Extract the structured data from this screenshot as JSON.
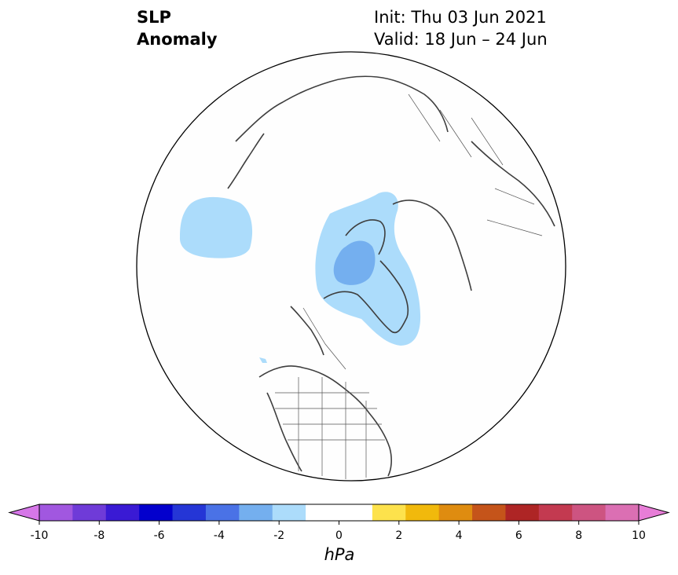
{
  "title": {
    "left_line1": "SLP",
    "left_line2": "Anomaly",
    "init": "Init: Thu 03 Jun 2021",
    "valid": "Valid: 18 Jun – 24 Jun"
  },
  "colorbar": {
    "unit": "hPa",
    "tick_labels": [
      "-10",
      "-8",
      "-6",
      "-4",
      "-2",
      "0",
      "2",
      "4",
      "6",
      "8",
      "10"
    ],
    "range": [
      -10,
      10
    ],
    "colors": [
      "#d677e8",
      "#a157e0",
      "#6f3bd8",
      "#3a1ad4",
      "#0300cd",
      "#2536d6",
      "#4a72e6",
      "#74afef",
      "#acdcfb",
      "#ffffff",
      "#ffffff",
      "#fde24c",
      "#f1b90c",
      "#df8c10",
      "#c5541a",
      "#ae2525",
      "#c33a50",
      "#cd5481",
      "#db6fb3",
      "#e77dd7"
    ]
  },
  "map": {
    "projection": "north-polar-stereographic",
    "anomaly_regions": [
      {
        "name": "north-atlantic-low-outer",
        "level": "-1 to -2 hPa",
        "color": "#acdcfb"
      },
      {
        "name": "greenland-low-outer",
        "level": "-1 to -2 hPa",
        "color": "#acdcfb"
      },
      {
        "name": "greenland-low-core",
        "level": "-2 to -3 hPa",
        "color": "#74afef"
      }
    ]
  }
}
